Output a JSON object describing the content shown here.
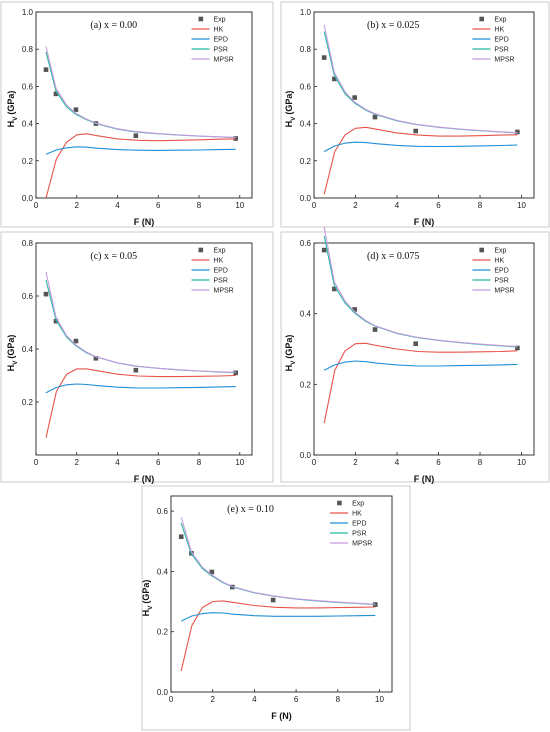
{
  "chart_data": [
    {
      "type": "line",
      "title": "(a) x = 0.00",
      "xlabel": "F (N)",
      "ylabel": "H",
      "ylabel_sub": "V",
      "ylabel_unit": "(GPa)",
      "xlim": [
        0,
        10.6
      ],
      "ylim": [
        0,
        1.0
      ],
      "xticks": [
        0,
        2,
        4,
        6,
        8,
        10
      ],
      "yticks": [
        0.0,
        0.2,
        0.4,
        0.6,
        0.8,
        1.0
      ],
      "ytick_labels": [
        "0.0",
        "0.2",
        "0.4",
        "0.6",
        "0.8",
        "1.0"
      ],
      "legend_position": "top-right",
      "series": [
        {
          "name": "Exp",
          "kind": "scatter",
          "color": "#555555",
          "x": [
            0.49,
            0.98,
            1.96,
            2.94,
            4.9,
            9.8
          ],
          "y": [
            0.69,
            0.56,
            0.475,
            0.4,
            0.335,
            0.32
          ]
        },
        {
          "name": "HK",
          "kind": "line",
          "color": "#e8534a",
          "x": [
            0.49,
            1.0,
            1.5,
            2.0,
            2.5,
            3.0,
            4.0,
            5.0,
            6.0,
            7.0,
            8.0,
            9.0,
            9.8
          ],
          "y": [
            0.0,
            0.21,
            0.3,
            0.34,
            0.345,
            0.335,
            0.318,
            0.31,
            0.308,
            0.31,
            0.313,
            0.316,
            0.318
          ]
        },
        {
          "name": "EPD",
          "kind": "line",
          "color": "#1f8fd6",
          "x": [
            0.49,
            1.0,
            1.5,
            2.0,
            2.5,
            3.0,
            4.0,
            5.0,
            6.0,
            7.0,
            8.0,
            9.0,
            9.8
          ],
          "y": [
            0.235,
            0.258,
            0.27,
            0.275,
            0.273,
            0.268,
            0.26,
            0.257,
            0.256,
            0.257,
            0.258,
            0.26,
            0.262
          ]
        },
        {
          "name": "PSR",
          "kind": "line",
          "color": "#28b8a0",
          "x": [
            0.49,
            0.98,
            1.5,
            1.96,
            2.5,
            2.94,
            4.0,
            4.9,
            6.0,
            7.0,
            8.0,
            9.0,
            9.8
          ],
          "y": [
            0.785,
            0.575,
            0.49,
            0.45,
            0.42,
            0.4,
            0.37,
            0.355,
            0.345,
            0.338,
            0.333,
            0.328,
            0.325
          ]
        },
        {
          "name": "MPSR",
          "kind": "line",
          "color": "#c79ae0",
          "x": [
            0.49,
            0.98,
            1.5,
            1.96,
            2.5,
            2.94,
            4.0,
            4.9,
            6.0,
            7.0,
            8.0,
            9.0,
            9.8
          ],
          "y": [
            0.815,
            0.59,
            0.5,
            0.455,
            0.423,
            0.402,
            0.372,
            0.357,
            0.346,
            0.339,
            0.333,
            0.329,
            0.326
          ]
        }
      ]
    },
    {
      "type": "line",
      "title": "(b) x = 0.025",
      "xlabel": "F (N)",
      "ylabel": "H",
      "ylabel_sub": "V",
      "ylabel_unit": "(GPa)",
      "xlim": [
        0,
        10.6
      ],
      "ylim": [
        0,
        1.0
      ],
      "xticks": [
        0,
        2,
        4,
        6,
        8,
        10
      ],
      "yticks": [
        0.0,
        0.2,
        0.4,
        0.6,
        0.8,
        1.0
      ],
      "ytick_labels": [
        "0.0",
        "0.2",
        "0.4",
        "0.6",
        "0.8",
        "1.0"
      ],
      "legend_position": "top-right",
      "series": [
        {
          "name": "Exp",
          "kind": "scatter",
          "color": "#555555",
          "x": [
            0.49,
            0.98,
            1.96,
            2.94,
            4.9,
            9.8
          ],
          "y": [
            0.755,
            0.64,
            0.54,
            0.435,
            0.36,
            0.355
          ]
        },
        {
          "name": "HK",
          "kind": "line",
          "color": "#e8534a",
          "x": [
            0.49,
            1.0,
            1.5,
            2.0,
            2.5,
            3.0,
            4.0,
            5.0,
            6.0,
            7.0,
            8.0,
            9.0,
            9.8
          ],
          "y": [
            0.02,
            0.25,
            0.34,
            0.375,
            0.38,
            0.37,
            0.35,
            0.338,
            0.333,
            0.333,
            0.335,
            0.338,
            0.34
          ]
        },
        {
          "name": "EPD",
          "kind": "line",
          "color": "#1f8fd6",
          "x": [
            0.49,
            1.0,
            1.5,
            2.0,
            2.5,
            3.0,
            4.0,
            5.0,
            6.0,
            7.0,
            8.0,
            9.0,
            9.8
          ],
          "y": [
            0.25,
            0.28,
            0.295,
            0.3,
            0.298,
            0.292,
            0.283,
            0.278,
            0.277,
            0.278,
            0.28,
            0.282,
            0.285
          ]
        },
        {
          "name": "PSR",
          "kind": "line",
          "color": "#28b8a0",
          "x": [
            0.49,
            0.98,
            1.5,
            1.96,
            2.5,
            2.94,
            4.0,
            4.9,
            6.0,
            7.0,
            8.0,
            9.0,
            9.8
          ],
          "y": [
            0.895,
            0.66,
            0.56,
            0.51,
            0.472,
            0.45,
            0.415,
            0.395,
            0.38,
            0.37,
            0.362,
            0.355,
            0.35
          ]
        },
        {
          "name": "MPSR",
          "kind": "line",
          "color": "#c79ae0",
          "x": [
            0.49,
            0.98,
            1.5,
            1.96,
            2.5,
            2.94,
            4.0,
            4.9,
            6.0,
            7.0,
            8.0,
            9.0,
            9.8
          ],
          "y": [
            0.93,
            0.675,
            0.57,
            0.515,
            0.476,
            0.453,
            0.417,
            0.397,
            0.381,
            0.371,
            0.363,
            0.356,
            0.351
          ]
        }
      ]
    },
    {
      "type": "line",
      "title": "(c) x = 0.05",
      "xlabel": "F (N)",
      "ylabel": "H",
      "ylabel_sub": "V",
      "ylabel_unit": "(GPa)",
      "xlim": [
        0,
        10.6
      ],
      "ylim": [
        0,
        0.8
      ],
      "xticks": [
        0,
        2,
        4,
        6,
        8,
        10
      ],
      "yticks": [
        0.2,
        0.4,
        0.6,
        0.8
      ],
      "ytick_labels": [
        "0.2",
        "0.4",
        "0.6",
        "0.8"
      ],
      "legend_position": "top-right",
      "series": [
        {
          "name": "Exp",
          "kind": "scatter",
          "color": "#555555",
          "x": [
            0.49,
            0.98,
            1.96,
            2.94,
            4.9,
            9.8
          ],
          "y": [
            0.607,
            0.505,
            0.43,
            0.365,
            0.32,
            0.31
          ]
        },
        {
          "name": "HK",
          "kind": "line",
          "color": "#e8534a",
          "x": [
            0.49,
            1.0,
            1.5,
            2.0,
            2.5,
            3.0,
            4.0,
            5.0,
            6.0,
            7.0,
            8.0,
            9.0,
            9.8
          ],
          "y": [
            0.065,
            0.24,
            0.305,
            0.325,
            0.325,
            0.318,
            0.305,
            0.298,
            0.296,
            0.296,
            0.297,
            0.298,
            0.3
          ]
        },
        {
          "name": "EPD",
          "kind": "line",
          "color": "#1f8fd6",
          "x": [
            0.49,
            1.0,
            1.5,
            2.0,
            2.5,
            3.0,
            4.0,
            5.0,
            6.0,
            7.0,
            8.0,
            9.0,
            9.8
          ],
          "y": [
            0.235,
            0.255,
            0.265,
            0.268,
            0.266,
            0.262,
            0.256,
            0.253,
            0.253,
            0.254,
            0.255,
            0.257,
            0.258
          ]
        },
        {
          "name": "PSR",
          "kind": "line",
          "color": "#28b8a0",
          "x": [
            0.49,
            0.98,
            1.5,
            1.96,
            2.5,
            2.94,
            4.0,
            4.9,
            6.0,
            7.0,
            8.0,
            9.0,
            9.8
          ],
          "y": [
            0.66,
            0.51,
            0.445,
            0.412,
            0.385,
            0.37,
            0.347,
            0.335,
            0.327,
            0.321,
            0.317,
            0.313,
            0.311
          ]
        },
        {
          "name": "MPSR",
          "kind": "line",
          "color": "#c79ae0",
          "x": [
            0.49,
            0.98,
            1.5,
            1.96,
            2.5,
            2.94,
            4.0,
            4.9,
            6.0,
            7.0,
            8.0,
            9.0,
            9.8
          ],
          "y": [
            0.69,
            0.52,
            0.45,
            0.415,
            0.387,
            0.371,
            0.348,
            0.336,
            0.327,
            0.322,
            0.317,
            0.314,
            0.312
          ]
        }
      ]
    },
    {
      "type": "line",
      "title": "(d) x = 0.075",
      "xlabel": "F (N)",
      "ylabel": "H",
      "ylabel_sub": "V",
      "ylabel_unit": "(GPa)",
      "xlim": [
        0,
        10.6
      ],
      "ylim": [
        0,
        0.6
      ],
      "xticks": [
        0,
        2,
        4,
        6,
        8,
        10
      ],
      "yticks": [
        0.0,
        0.2,
        0.4,
        0.6
      ],
      "ytick_labels": [
        "0.0",
        "0.2",
        "0.4",
        "0.6"
      ],
      "legend_position": "top-right",
      "series": [
        {
          "name": "Exp",
          "kind": "scatter",
          "color": "#555555",
          "x": [
            0.49,
            0.98,
            1.96,
            2.94,
            4.9,
            9.8
          ],
          "y": [
            0.58,
            0.47,
            0.412,
            0.355,
            0.315,
            0.303
          ]
        },
        {
          "name": "HK",
          "kind": "line",
          "color": "#e8534a",
          "x": [
            0.49,
            1.0,
            1.5,
            2.0,
            2.5,
            3.0,
            4.0,
            5.0,
            6.0,
            7.0,
            8.0,
            9.0,
            9.8
          ],
          "y": [
            0.09,
            0.24,
            0.295,
            0.315,
            0.316,
            0.31,
            0.3,
            0.293,
            0.291,
            0.291,
            0.292,
            0.293,
            0.295
          ]
        },
        {
          "name": "EPD",
          "kind": "line",
          "color": "#1f8fd6",
          "x": [
            0.49,
            1.0,
            1.5,
            2.0,
            2.5,
            3.0,
            4.0,
            5.0,
            6.0,
            7.0,
            8.0,
            9.0,
            9.8
          ],
          "y": [
            0.24,
            0.255,
            0.263,
            0.266,
            0.264,
            0.26,
            0.255,
            0.252,
            0.252,
            0.253,
            0.254,
            0.255,
            0.256
          ]
        },
        {
          "name": "PSR",
          "kind": "line",
          "color": "#28b8a0",
          "x": [
            0.49,
            0.98,
            1.5,
            1.96,
            2.5,
            2.94,
            4.0,
            4.9,
            6.0,
            7.0,
            8.0,
            9.0,
            9.8
          ],
          "y": [
            0.62,
            0.48,
            0.43,
            0.402,
            0.378,
            0.365,
            0.344,
            0.333,
            0.324,
            0.318,
            0.313,
            0.309,
            0.306
          ]
        },
        {
          "name": "MPSR",
          "kind": "line",
          "color": "#c79ae0",
          "x": [
            0.49,
            0.98,
            1.5,
            1.96,
            2.5,
            2.94,
            4.0,
            4.9,
            6.0,
            7.0,
            8.0,
            9.0,
            9.8
          ],
          "y": [
            0.645,
            0.49,
            0.435,
            0.405,
            0.38,
            0.366,
            0.345,
            0.334,
            0.325,
            0.319,
            0.314,
            0.31,
            0.307
          ]
        }
      ]
    },
    {
      "type": "line",
      "title": "(e) x = 0.10",
      "xlabel": "F (N)",
      "ylabel": "H",
      "ylabel_sub": "V",
      "ylabel_unit": "(GPa)",
      "xlim": [
        0,
        10.6
      ],
      "ylim": [
        0,
        0.65
      ],
      "xticks": [
        0,
        2,
        4,
        6,
        8,
        10
      ],
      "yticks": [
        0.0,
        0.2,
        0.4,
        0.6
      ],
      "ytick_labels": [
        "0.0",
        "0.2",
        "0.4",
        "0.6"
      ],
      "legend_position": "top-right",
      "series": [
        {
          "name": "Exp",
          "kind": "scatter",
          "color": "#555555",
          "x": [
            0.49,
            0.98,
            1.96,
            2.94,
            4.9,
            9.8
          ],
          "y": [
            0.515,
            0.46,
            0.398,
            0.348,
            0.305,
            0.29
          ]
        },
        {
          "name": "HK",
          "kind": "line",
          "color": "#e8534a",
          "x": [
            0.49,
            1.0,
            1.5,
            2.0,
            2.5,
            3.0,
            4.0,
            5.0,
            6.0,
            7.0,
            8.0,
            9.0,
            9.8
          ],
          "y": [
            0.07,
            0.22,
            0.28,
            0.3,
            0.302,
            0.297,
            0.287,
            0.281,
            0.279,
            0.279,
            0.28,
            0.281,
            0.282
          ]
        },
        {
          "name": "EPD",
          "kind": "line",
          "color": "#1f8fd6",
          "x": [
            0.49,
            1.0,
            1.5,
            2.0,
            2.5,
            3.0,
            4.0,
            5.0,
            6.0,
            7.0,
            8.0,
            9.0,
            9.8
          ],
          "y": [
            0.235,
            0.252,
            0.26,
            0.263,
            0.262,
            0.258,
            0.253,
            0.251,
            0.251,
            0.251,
            0.252,
            0.253,
            0.254
          ]
        },
        {
          "name": "PSR",
          "kind": "line",
          "color": "#28b8a0",
          "x": [
            0.49,
            0.98,
            1.5,
            1.96,
            2.5,
            2.94,
            4.0,
            4.9,
            6.0,
            7.0,
            8.0,
            9.0,
            9.8
          ],
          "y": [
            0.56,
            0.458,
            0.41,
            0.385,
            0.362,
            0.349,
            0.329,
            0.318,
            0.308,
            0.302,
            0.297,
            0.293,
            0.29
          ]
        },
        {
          "name": "MPSR",
          "kind": "line",
          "color": "#c79ae0",
          "x": [
            0.49,
            0.98,
            1.5,
            1.96,
            2.5,
            2.94,
            4.0,
            4.9,
            6.0,
            7.0,
            8.0,
            9.0,
            9.8
          ],
          "y": [
            0.58,
            0.465,
            0.414,
            0.388,
            0.364,
            0.35,
            0.33,
            0.319,
            0.309,
            0.303,
            0.298,
            0.294,
            0.291
          ]
        }
      ]
    }
  ]
}
